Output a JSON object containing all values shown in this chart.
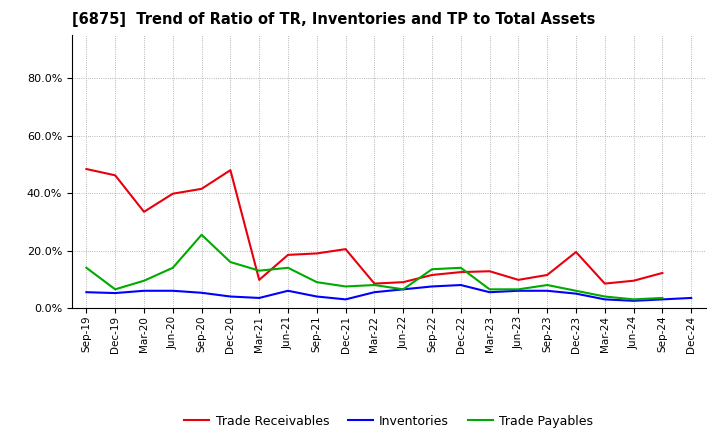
{
  "title": "[6875]  Trend of Ratio of TR, Inventories and TP to Total Assets",
  "x_labels": [
    "Sep-19",
    "Dec-19",
    "Mar-20",
    "Jun-20",
    "Sep-20",
    "Dec-20",
    "Mar-21",
    "Jun-21",
    "Sep-21",
    "Dec-21",
    "Mar-22",
    "Jun-22",
    "Sep-22",
    "Dec-22",
    "Mar-23",
    "Jun-23",
    "Sep-23",
    "Dec-23",
    "Mar-24",
    "Jun-24",
    "Sep-24",
    "Dec-24"
  ],
  "trade_receivables": [
    0.484,
    0.462,
    0.335,
    0.398,
    0.415,
    0.48,
    0.098,
    0.185,
    0.19,
    0.205,
    0.085,
    0.09,
    0.115,
    0.125,
    0.128,
    0.098,
    0.115,
    0.195,
    0.085,
    0.095,
    0.122,
    null
  ],
  "inventories": [
    0.055,
    0.052,
    0.06,
    0.06,
    0.053,
    0.04,
    0.035,
    0.06,
    0.04,
    0.03,
    0.055,
    0.065,
    0.075,
    0.08,
    0.055,
    0.06,
    0.06,
    0.05,
    0.03,
    0.025,
    0.03,
    0.035
  ],
  "trade_payables": [
    0.14,
    0.065,
    0.095,
    0.14,
    0.255,
    0.16,
    0.13,
    0.14,
    0.09,
    0.075,
    0.08,
    0.065,
    0.135,
    0.14,
    0.065,
    0.065,
    0.08,
    0.06,
    0.04,
    0.03,
    0.035,
    null
  ],
  "ylim": [
    0.0,
    0.95
  ],
  "yticks": [
    0.0,
    0.2,
    0.4,
    0.6,
    0.8
  ],
  "color_tr": "#e8000d",
  "color_inv": "#0000ff",
  "color_tp": "#00aa00",
  "legend_labels": [
    "Trade Receivables",
    "Inventories",
    "Trade Payables"
  ],
  "bg_color": "#ffffff",
  "grid_color": "#888888"
}
